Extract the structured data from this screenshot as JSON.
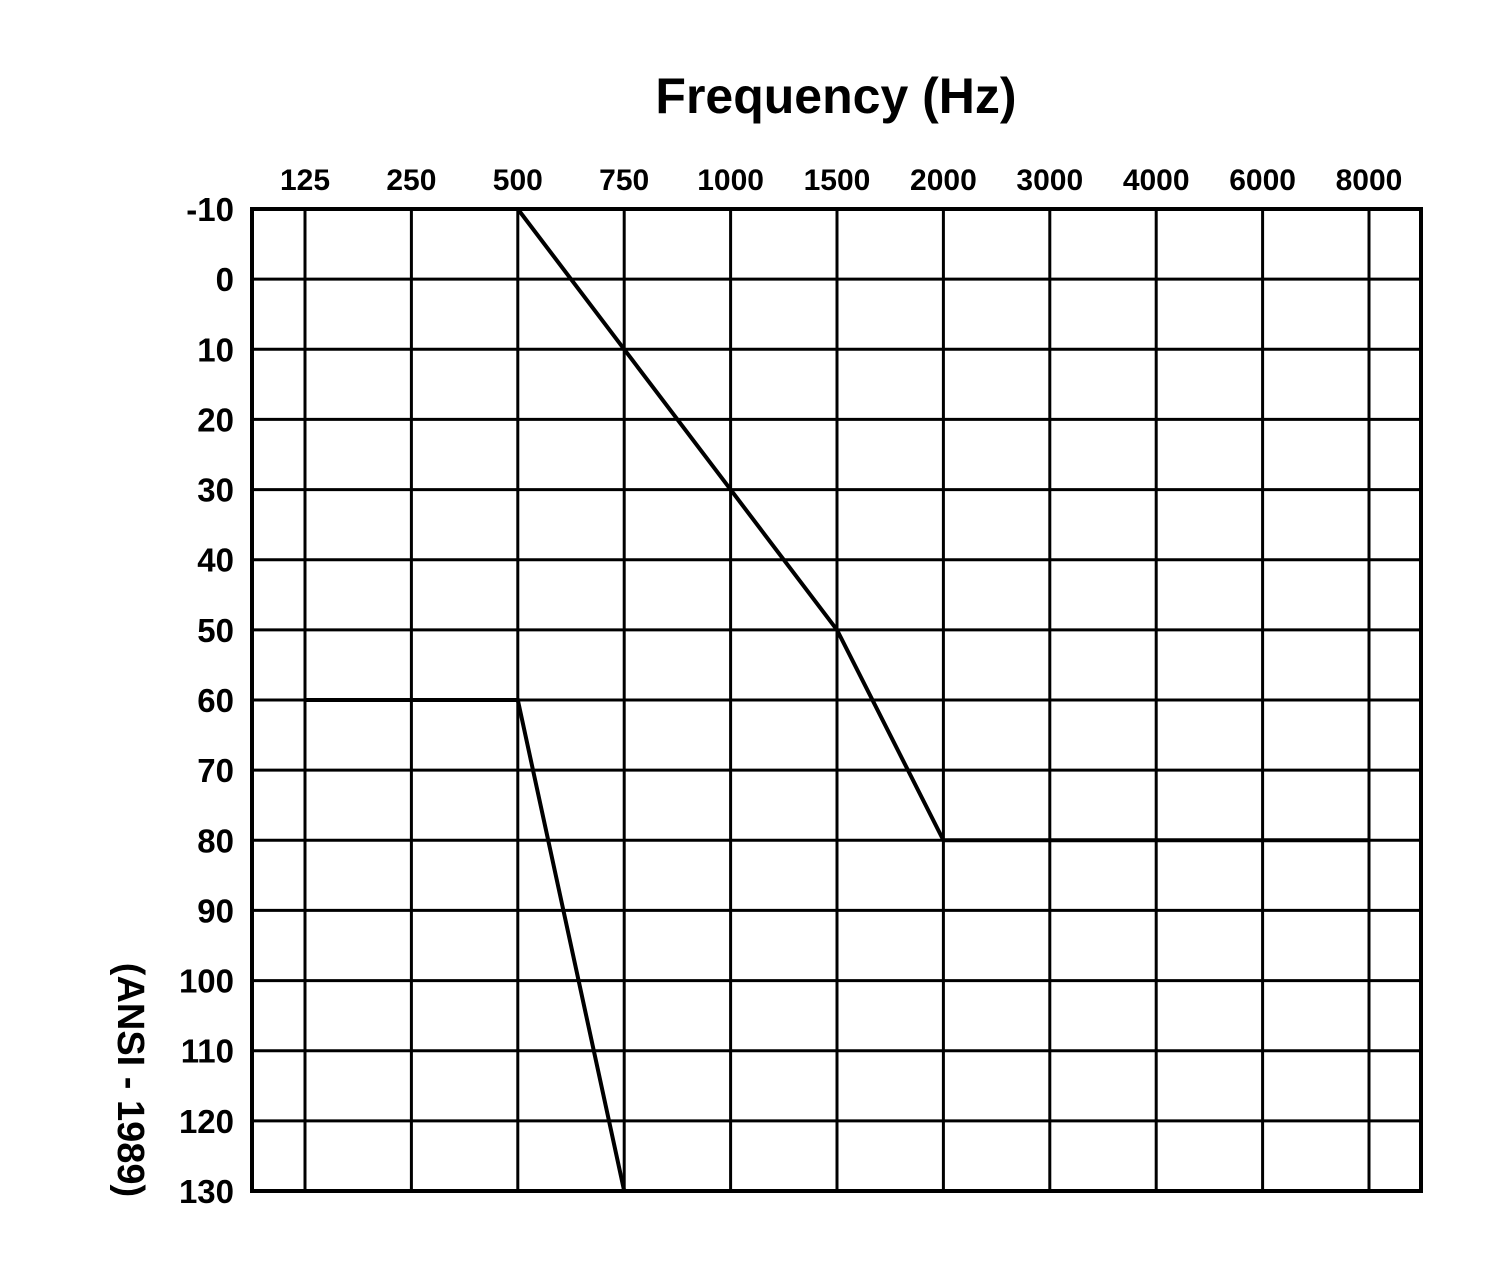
{
  "chart_data": {
    "type": "line",
    "title": "Frequency (Hz)",
    "side_label": "(ANSI - 1989)",
    "x_tick_labels": [
      "125",
      "250",
      "500",
      "750",
      "1000",
      "1500",
      "2000",
      "3000",
      "4000",
      "6000",
      "8000"
    ],
    "y_tick_labels": [
      "-10",
      "0",
      "10",
      "20",
      "30",
      "40",
      "50",
      "60",
      "70",
      "80",
      "90",
      "100",
      "110",
      "120",
      "130"
    ],
    "ylim": [
      -10,
      130
    ],
    "y_inverted": true,
    "x_axis_position": "top",
    "grid": true,
    "series": [
      {
        "x": [
          "500",
          "750",
          "1000",
          "1500",
          "2000",
          "3000",
          "4000",
          "6000",
          "8000"
        ],
        "y": [
          -10,
          10,
          30,
          50,
          80,
          80,
          80,
          80,
          80
        ]
      },
      {
        "x": [
          "125",
          "250",
          "500",
          "750",
          "1000",
          "1500",
          "2000",
          "3000",
          "4000",
          "6000",
          "8000"
        ],
        "y": [
          60,
          60,
          60,
          130,
          130,
          130,
          130,
          130,
          130,
          130,
          130
        ]
      }
    ],
    "colors": {
      "line": "#000000",
      "grid": "#000000",
      "background": "#ffffff"
    }
  }
}
